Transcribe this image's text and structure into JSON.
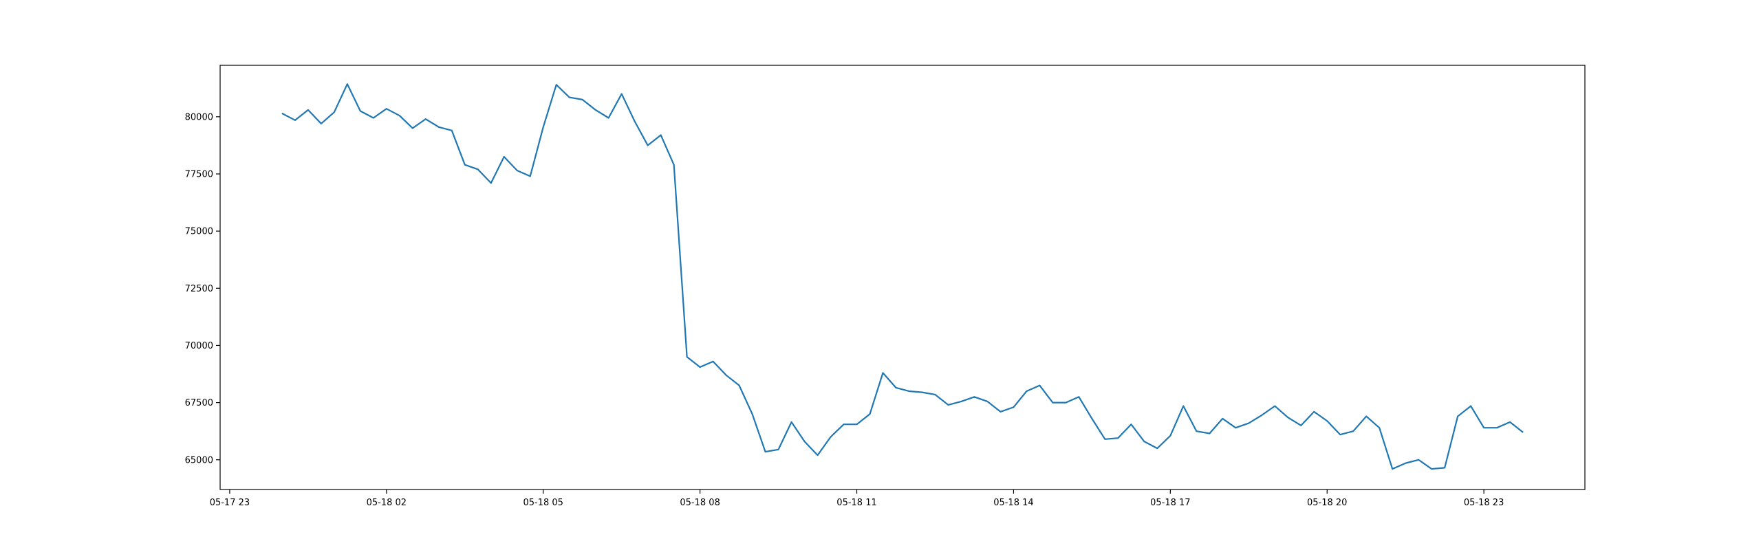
{
  "chart_data": {
    "type": "line",
    "x": [
      "05-18 00:00",
      "05-18 00:15",
      "05-18 00:30",
      "05-18 00:45",
      "05-18 01:00",
      "05-18 01:15",
      "05-18 01:30",
      "05-18 01:45",
      "05-18 02:00",
      "05-18 02:15",
      "05-18 02:30",
      "05-18 02:45",
      "05-18 03:00",
      "05-18 03:15",
      "05-18 03:30",
      "05-18 03:45",
      "05-18 04:00",
      "05-18 04:15",
      "05-18 04:30",
      "05-18 04:45",
      "05-18 05:00",
      "05-18 05:15",
      "05-18 05:30",
      "05-18 05:45",
      "05-18 06:00",
      "05-18 06:15",
      "05-18 06:30",
      "05-18 06:45",
      "05-18 07:00",
      "05-18 07:15",
      "05-18 07:30",
      "05-18 07:45",
      "05-18 08:00",
      "05-18 08:15",
      "05-18 08:30",
      "05-18 08:45",
      "05-18 09:00",
      "05-18 09:15",
      "05-18 09:30",
      "05-18 09:45",
      "05-18 10:00",
      "05-18 10:15",
      "05-18 10:30",
      "05-18 10:45",
      "05-18 11:00",
      "05-18 11:15",
      "05-18 11:30",
      "05-18 11:45",
      "05-18 12:00",
      "05-18 12:15",
      "05-18 12:30",
      "05-18 12:45",
      "05-18 13:00",
      "05-18 13:15",
      "05-18 13:30",
      "05-18 13:45",
      "05-18 14:00",
      "05-18 14:15",
      "05-18 14:30",
      "05-18 14:45",
      "05-18 15:00",
      "05-18 15:15",
      "05-18 15:30",
      "05-18 15:45",
      "05-18 16:00",
      "05-18 16:15",
      "05-18 16:30",
      "05-18 16:45",
      "05-18 17:00",
      "05-18 17:15",
      "05-18 17:30",
      "05-18 17:45",
      "05-18 18:00",
      "05-18 18:15",
      "05-18 18:30",
      "05-18 18:45",
      "05-18 19:00",
      "05-18 19:15",
      "05-18 19:30",
      "05-18 19:45",
      "05-18 20:00",
      "05-18 20:15",
      "05-18 20:30",
      "05-18 20:45",
      "05-18 21:00",
      "05-18 21:15",
      "05-18 21:30",
      "05-18 21:45",
      "05-18 22:00",
      "05-18 22:15",
      "05-18 22:30",
      "05-18 22:45",
      "05-18 23:00",
      "05-18 23:15",
      "05-18 23:30",
      "05-18 23:45"
    ],
    "series": [
      {
        "color": "#1f77b4",
        "values": [
          80150,
          79850,
          80300,
          79700,
          80200,
          81430,
          80250,
          79950,
          80350,
          80050,
          79500,
          79900,
          79550,
          79400,
          77900,
          77700,
          77100,
          78250,
          77650,
          77400,
          79550,
          81400,
          80850,
          80750,
          80300,
          79950,
          81000,
          79800,
          78750,
          79200,
          77900,
          69500,
          69050,
          69300,
          68700,
          68250,
          67000,
          65350,
          65450,
          66650,
          65800,
          65200,
          66000,
          66550,
          66550,
          67000,
          68800,
          68150,
          68000,
          67950,
          67850,
          67400,
          67550,
          67750,
          67550,
          67100,
          67300,
          68000,
          68250,
          67500,
          67500,
          67750,
          66800,
          65900,
          65950,
          66550,
          65800,
          65500,
          66050,
          67350,
          66250,
          66150,
          66800,
          66400,
          66600,
          66950,
          67350,
          66850,
          66500,
          67100,
          66700,
          66100,
          66250,
          66900,
          66400,
          64600,
          64850,
          65000,
          64600,
          64650,
          66900,
          67350,
          66400,
          66400,
          66650,
          66200
        ]
      }
    ],
    "xlim": [
      "05-17 22:49",
      "05-19 00:56"
    ],
    "xticks": [
      {
        "value": "05-17 23:00",
        "label": "05-17 23"
      },
      {
        "value": "05-18 02:00",
        "label": "05-18 02"
      },
      {
        "value": "05-18 05:00",
        "label": "05-18 05"
      },
      {
        "value": "05-18 08:00",
        "label": "05-18 08"
      },
      {
        "value": "05-18 11:00",
        "label": "05-18 11"
      },
      {
        "value": "05-18 14:00",
        "label": "05-18 14"
      },
      {
        "value": "05-18 17:00",
        "label": "05-18 17"
      },
      {
        "value": "05-18 20:00",
        "label": "05-18 20"
      },
      {
        "value": "05-18 23:00",
        "label": "05-18 23"
      }
    ],
    "ylim": [
      63700,
      82250
    ],
    "yticks": [
      65000,
      67500,
      70000,
      72500,
      75000,
      77500,
      80000
    ]
  }
}
